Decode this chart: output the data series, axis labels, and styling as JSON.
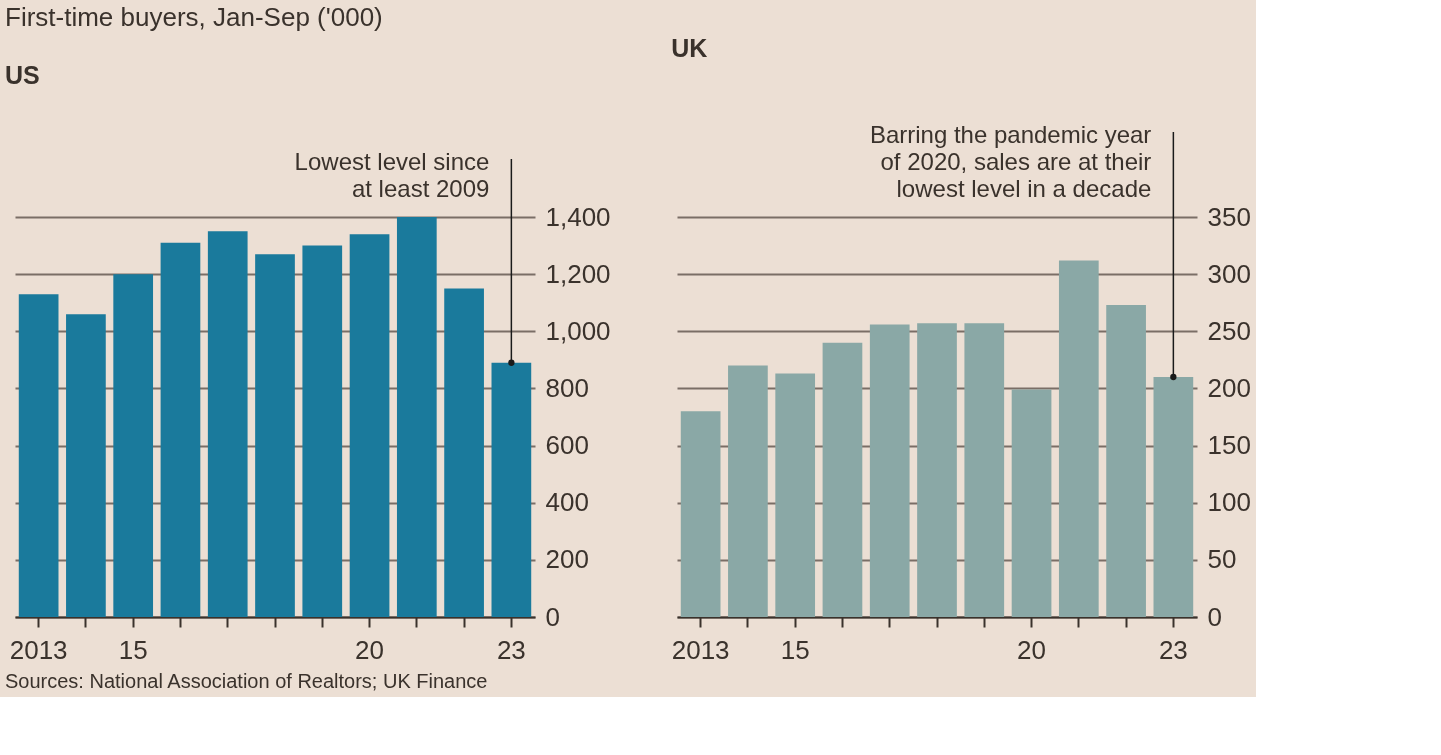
{
  "chart_data": [
    {
      "type": "bar",
      "title": "First-time buyers, Jan-Sep ('000)",
      "subtitle": "US",
      "color": "#1a7a9c",
      "categories": [
        "2013",
        null,
        "15",
        null,
        null,
        null,
        null,
        "20",
        null,
        null,
        "23"
      ],
      "values": [
        1130,
        1060,
        1200,
        1310,
        1350,
        1270,
        1300,
        1340,
        1400,
        1150,
        890
      ],
      "ylim": [
        0,
        1400
      ],
      "yticks": [
        0,
        200,
        400,
        600,
        800,
        {
          "value": 1000,
          "label": "1,000"
        },
        {
          "value": 1200,
          "label": "1,200"
        },
        {
          "value": 1400,
          "label": "1,400"
        }
      ],
      "grid": "y",
      "annotations": [
        {
          "text": "Lowest level since\nat least 2009",
          "x": "23",
          "y": 890
        },
        "Sources: National Association of Realtors; UK Finance"
      ]
    },
    {
      "type": "bar",
      "subtitle": "UK",
      "color": "#8aa8a6",
      "categories": [
        "2013",
        null,
        "15",
        null,
        null,
        null,
        null,
        "20",
        null,
        null,
        "23"
      ],
      "values": [
        180,
        220,
        213,
        240,
        256,
        257,
        257,
        199,
        312,
        273,
        210
      ],
      "ylim": [
        0,
        350
      ],
      "yticks": [
        0,
        50,
        100,
        150,
        200,
        250,
        300,
        350
      ],
      "grid": "y",
      "annotations": [
        {
          "text": "Barring the pandemic year\nof 2020, sales are at their\nlowest level in a decade",
          "x": "23",
          "y": 210
        }
      ]
    }
  ]
}
